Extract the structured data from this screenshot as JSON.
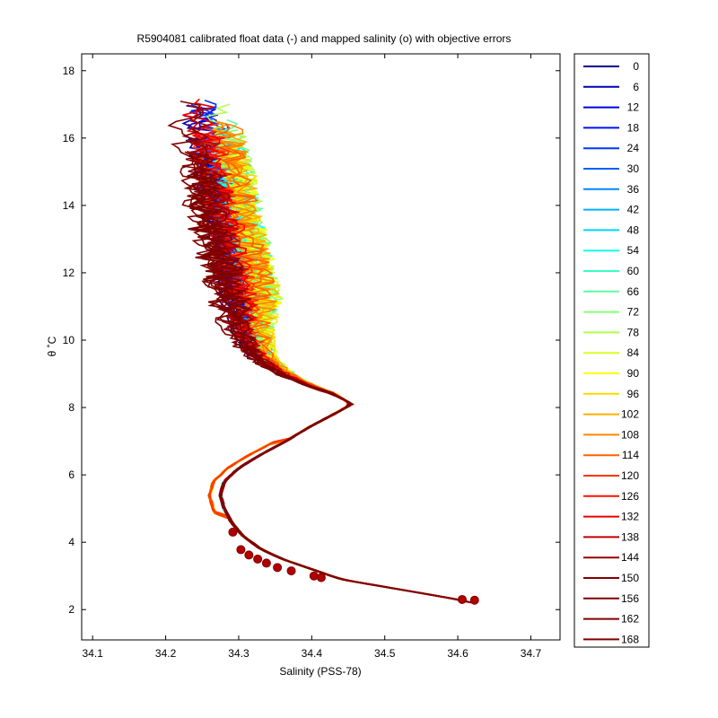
{
  "chart_data": {
    "type": "line",
    "title": "R5904081 calibrated float data (-) and mapped salinity (o) with objective errors",
    "xlabel": "Salinity (PSS-78)",
    "ylabel": "θ ˚C",
    "xlim": [
      34.085,
      34.74
    ],
    "ylim": [
      1.1,
      18.5
    ],
    "xticks": [
      "34.1",
      "34.2",
      "34.3",
      "34.4",
      "34.5",
      "34.6",
      "34.7"
    ],
    "xtick_values": [
      34.1,
      34.2,
      34.3,
      34.4,
      34.5,
      34.6,
      34.7
    ],
    "yticks": [
      "2",
      "4",
      "6",
      "8",
      "10",
      "12",
      "14",
      "16",
      "18"
    ],
    "ytick_values": [
      2,
      4,
      6,
      8,
      10,
      12,
      14,
      16,
      18
    ],
    "grid": false,
    "legend_position": "outside-right",
    "legend": [
      "0",
      "6",
      "12",
      "18",
      "24",
      "30",
      "36",
      "42",
      "48",
      "54",
      "60",
      "66",
      "72",
      "78",
      "84",
      "90",
      "96",
      "102",
      "108",
      "114",
      "120",
      "126",
      "132",
      "138",
      "144",
      "150",
      "156",
      "162",
      "168"
    ],
    "colors": [
      "#00008f",
      "#0000b8",
      "#0000e0",
      "#0010ff",
      "#0038ff",
      "#0060ff",
      "#0088ff",
      "#00b0ff",
      "#00d8ff",
      "#10ffef",
      "#38ffc7",
      "#60ff9f",
      "#88ff77",
      "#b0ff4f",
      "#d8ff27",
      "#ffff00",
      "#ffd800",
      "#ffb000",
      "#ff8800",
      "#ff6000",
      "#ff3800",
      "#ff1000",
      "#e80000",
      "#c00000",
      "#980000",
      "#800000",
      "#800000",
      "#800000",
      "#800000"
    ],
    "mean_profile": {
      "theta": [
        2.15,
        2.3,
        2.6,
        2.9,
        3.2,
        3.5,
        3.8,
        4.2,
        4.6,
        5.0,
        5.4,
        5.8,
        6.2,
        6.6,
        7.0,
        7.4,
        7.8,
        8.1,
        8.4,
        8.7,
        9.0,
        9.4,
        9.8,
        10.3,
        10.8,
        11.3,
        11.8,
        12.3,
        12.8,
        13.3,
        13.8,
        14.3,
        14.8,
        15.3,
        15.8,
        16.3,
        16.8,
        17.1
      ],
      "salinity": [
        34.63,
        34.6,
        34.52,
        34.44,
        34.4,
        34.36,
        34.33,
        34.305,
        34.29,
        34.28,
        34.275,
        34.28,
        34.3,
        34.33,
        34.365,
        34.395,
        34.43,
        34.455,
        34.43,
        34.39,
        34.36,
        34.33,
        34.315,
        34.305,
        34.3,
        34.295,
        34.29,
        34.285,
        34.28,
        34.275,
        34.27,
        34.265,
        34.26,
        34.255,
        34.25,
        34.245,
        34.24,
        34.235
      ]
    },
    "mapped_salinity": {
      "salinity": [
        34.606,
        34.623,
        34.413,
        34.403,
        34.372,
        34.353,
        34.338,
        34.326,
        34.314,
        34.303,
        34.292
      ],
      "theta": [
        2.3,
        2.28,
        2.95,
        3.0,
        3.15,
        3.25,
        3.38,
        3.5,
        3.62,
        3.78,
        4.3
      ]
    }
  }
}
